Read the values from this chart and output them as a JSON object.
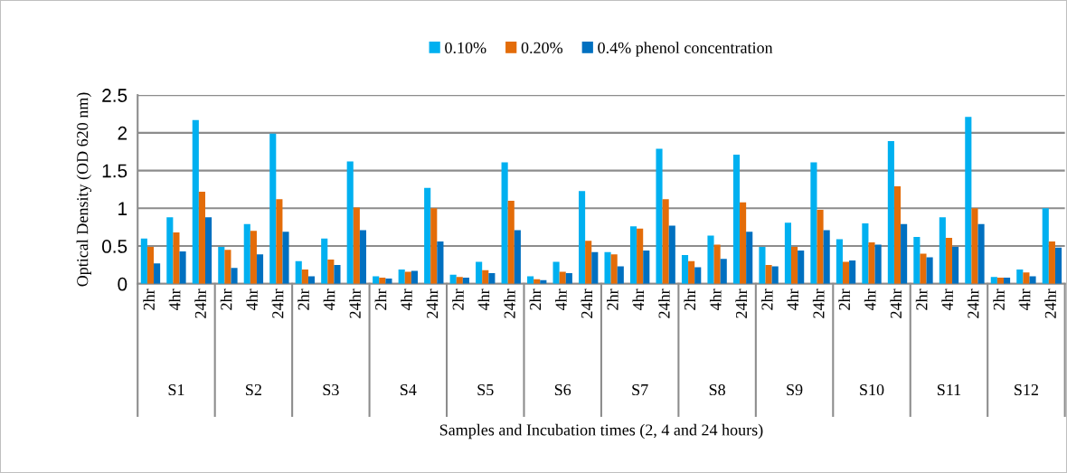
{
  "chart_data": {
    "type": "bar",
    "ylabel": "Optical Density (OD 620 nm)",
    "categories": [
      "2hr",
      "4hr",
      "24hr",
      "2hr",
      "4hr",
      "24hr",
      "2hr",
      "4hr",
      "24hr",
      "2hr",
      "4hr",
      "24hr",
      "2hr",
      "4hr",
      "24hr",
      "2hr",
      "4hr",
      "24hr",
      "2hr",
      "4hr",
      "24hr",
      "2hr",
      "4hr",
      "24hr",
      "2hr",
      "4hr",
      "24hr",
      "2hr",
      "4hr",
      "24hr",
      "2hr",
      "4hr",
      "24hr",
      "2hr",
      "4hr",
      "24hr"
    ],
    "annotations": [
      "S1",
      "S2",
      "S3",
      "S4",
      "S5",
      "S6",
      "S7",
      "S8",
      "S9",
      "S10",
      "S11",
      "S12",
      "Samples and Incubation times (2, 4 and 24 hours)"
    ],
    "series": [
      {
        "name": "0.10%",
        "color": "#00b0f0",
        "values": [
          0.6,
          0.88,
          2.17,
          0.49,
          0.79,
          1.99,
          0.3,
          0.6,
          1.62,
          0.1,
          0.19,
          1.27,
          0.12,
          0.29,
          1.61,
          0.1,
          0.29,
          1.23,
          0.42,
          0.76,
          1.79,
          0.38,
          0.64,
          1.71,
          0.49,
          0.81,
          1.61,
          0.59,
          0.8,
          1.89,
          0.62,
          0.88,
          2.21,
          0.09,
          0.19,
          1.0
        ]
      },
      {
        "name": "0.20%",
        "color": "#e36c09",
        "values": [
          0.49,
          0.68,
          1.22,
          0.45,
          0.7,
          1.12,
          0.19,
          0.32,
          1.01,
          0.08,
          0.16,
          1.0,
          0.09,
          0.18,
          1.1,
          0.06,
          0.16,
          0.57,
          0.39,
          0.73,
          1.12,
          0.3,
          0.52,
          1.08,
          0.25,
          0.49,
          0.98,
          0.29,
          0.55,
          1.29,
          0.4,
          0.61,
          1.0,
          0.08,
          0.15,
          0.56
        ]
      },
      {
        "name": "0.4% phenol concentration",
        "color": "#0070c0",
        "values": [
          0.27,
          0.43,
          0.88,
          0.21,
          0.39,
          0.69,
          0.1,
          0.25,
          0.71,
          0.07,
          0.17,
          0.56,
          0.08,
          0.14,
          0.71,
          0.05,
          0.14,
          0.42,
          0.23,
          0.44,
          0.77,
          0.22,
          0.33,
          0.69,
          0.23,
          0.44,
          0.71,
          0.31,
          0.52,
          0.79,
          0.35,
          0.49,
          0.79,
          0.08,
          0.1,
          0.48
        ]
      }
    ],
    "ylim": [
      0,
      2.5
    ],
    "yticks": [
      0,
      0.5,
      1,
      1.5,
      2,
      2.5
    ],
    "grid": "y",
    "legend": "top"
  }
}
